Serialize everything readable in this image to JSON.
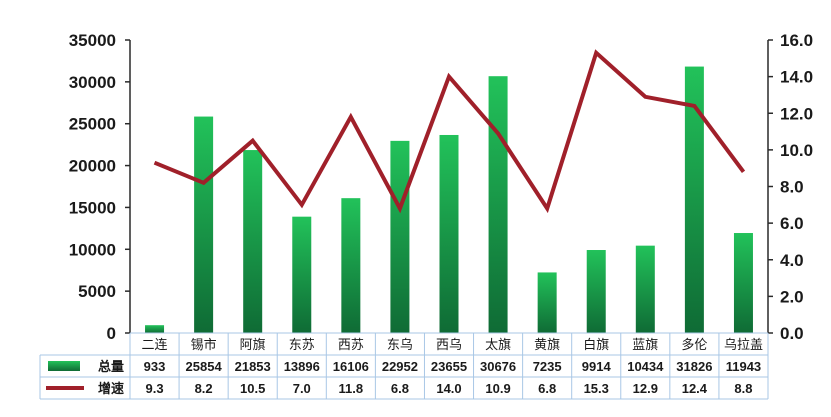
{
  "chart_data": {
    "type": "bar",
    "categories": [
      "二连",
      "锡市",
      "阿旗",
      "东苏",
      "西苏",
      "东乌",
      "西乌",
      "太旗",
      "黄旗",
      "白旗",
      "蓝旗",
      "多伦",
      "乌拉盖"
    ],
    "series": [
      {
        "name": "总量",
        "type": "bar",
        "axis": "left",
        "color": "#1fb352",
        "values": [
          933,
          25854,
          21853,
          13896,
          16106,
          22952,
          23655,
          30676,
          7235,
          9914,
          10434,
          31826,
          11943
        ]
      },
      {
        "name": "增速",
        "type": "line",
        "axis": "right",
        "color": "#a0202a",
        "values": [
          9.3,
          8.2,
          10.5,
          7.0,
          11.8,
          6.8,
          14.0,
          10.9,
          6.8,
          15.3,
          12.9,
          12.4,
          8.8
        ]
      }
    ],
    "y_left": {
      "min": 0,
      "max": 35000,
      "ticks": [
        "0",
        "5000",
        "10000",
        "15000",
        "20000",
        "25000",
        "30000",
        "35000"
      ]
    },
    "y_right": {
      "min": 0,
      "max": 16,
      "ticks": [
        "0.0",
        "2.0",
        "4.0",
        "6.0",
        "8.0",
        "10.0",
        "12.0",
        "14.0",
        "16.0"
      ]
    },
    "table": {
      "rows": [
        {
          "label": "总量",
          "cells": [
            "933",
            "25854",
            "21853",
            "13896",
            "16106",
            "22952",
            "23655",
            "30676",
            "7235",
            "9914",
            "10434",
            "31826",
            "11943"
          ]
        },
        {
          "label": "增速",
          "cells": [
            "9.3",
            "8.2",
            "10.5",
            "7.0",
            "11.8",
            "6.8",
            "14.0",
            "10.9",
            "6.8",
            "15.3",
            "12.9",
            "12.4",
            "8.8"
          ]
        }
      ]
    },
    "gridlines": false
  }
}
